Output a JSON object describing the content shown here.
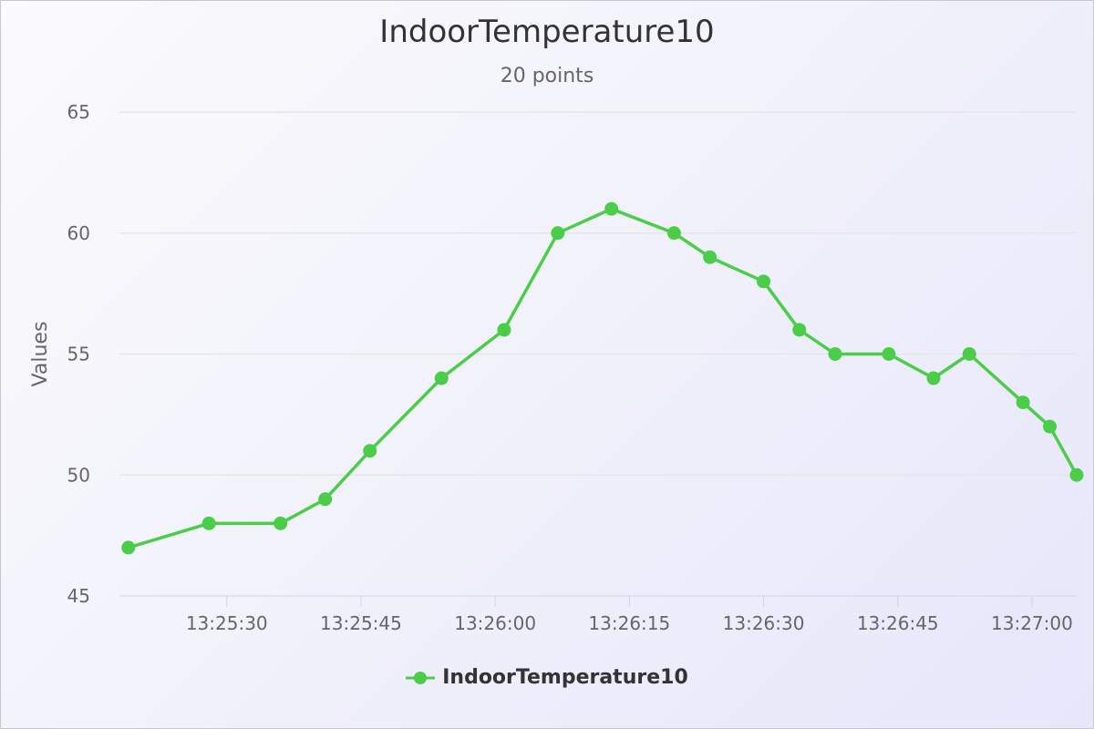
{
  "chart_data": {
    "type": "line",
    "title": "IndoorTemperature10",
    "subtitle": "20 points",
    "ylabel": "Values",
    "xlabel": "",
    "ylim": [
      45,
      65
    ],
    "yticks": [
      45,
      50,
      55,
      60,
      65
    ],
    "xlim": [
      "13:25:18",
      "13:27:05"
    ],
    "xticks": [
      "13:25:30",
      "13:25:45",
      "13:26:00",
      "13:26:15",
      "13:26:30",
      "13:26:45",
      "13:27:00"
    ],
    "grid": true,
    "legend_position": "bottom-center",
    "series": [
      {
        "name": "IndoorTemperature10",
        "color": "#4ccd4a",
        "x": [
          "13:25:19",
          "13:25:28",
          "13:25:36",
          "13:25:41",
          "13:25:46",
          "13:25:54",
          "13:26:01",
          "13:26:07",
          "13:26:13",
          "13:26:20",
          "13:26:24",
          "13:26:30",
          "13:26:34",
          "13:26:38",
          "13:26:44",
          "13:26:49",
          "13:26:53",
          "13:26:59",
          "13:27:02",
          "13:27:05"
        ],
        "values": [
          47,
          48,
          48,
          49,
          51,
          54,
          56,
          60,
          61,
          60,
          59,
          58,
          56,
          55,
          55,
          54,
          55,
          53,
          52,
          50
        ]
      }
    ]
  }
}
